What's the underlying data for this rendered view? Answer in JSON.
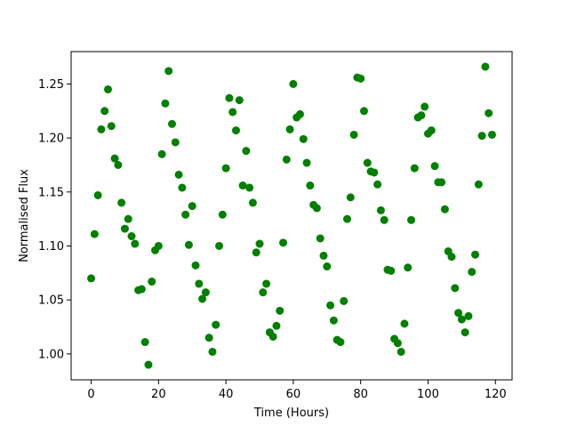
{
  "chart_data": {
    "type": "scatter",
    "title": "",
    "xlabel": "Time (Hours)",
    "ylabel": "Normalised Flux",
    "xlim": [
      -5.95,
      124.95
    ],
    "ylim": [
      0.976,
      1.28
    ],
    "xticks": [
      0,
      20,
      40,
      60,
      80,
      100,
      120
    ],
    "yticks": [
      1.0,
      1.05,
      1.1,
      1.15,
      1.2,
      1.25
    ],
    "xtick_labels": [
      "0",
      "20",
      "40",
      "60",
      "80",
      "100",
      "120"
    ],
    "ytick_labels": [
      "1.00",
      "1.05",
      "1.10",
      "1.15",
      "1.20",
      "1.25"
    ],
    "grid": false,
    "marker_color": "#008000",
    "series": [
      {
        "x": [
          0,
          1,
          2,
          3,
          4,
          5,
          6,
          7,
          8,
          9,
          10,
          11,
          12,
          13,
          14,
          15,
          16,
          17,
          18,
          19,
          20,
          21,
          22,
          23,
          24,
          25,
          26,
          27,
          28,
          29,
          30,
          31,
          32,
          33,
          34,
          35,
          36,
          37,
          38,
          39,
          40,
          41,
          42,
          43,
          44,
          45,
          46,
          47,
          48,
          49,
          50,
          51,
          52,
          53,
          54,
          55,
          56,
          57,
          58,
          59,
          60,
          61,
          62,
          63,
          64,
          65,
          66,
          67,
          68,
          69,
          70,
          71,
          72,
          73,
          74,
          75,
          76,
          77,
          78,
          79,
          80,
          81,
          82,
          83,
          84,
          85,
          86,
          87,
          88,
          89,
          90,
          91,
          92,
          93,
          94,
          95,
          96,
          97,
          98,
          99,
          100,
          101,
          102,
          103,
          104,
          105,
          106,
          107,
          108,
          109,
          110,
          111,
          112,
          113,
          114,
          115,
          116,
          117,
          118,
          119
        ],
        "y": [
          1.07,
          1.111,
          1.147,
          1.208,
          1.225,
          1.245,
          1.211,
          1.181,
          1.175,
          1.14,
          1.116,
          1.125,
          1.109,
          1.102,
          1.059,
          1.06,
          1.011,
          0.99,
          1.067,
          1.096,
          1.1,
          1.185,
          1.232,
          1.262,
          1.213,
          1.196,
          1.166,
          1.154,
          1.129,
          1.101,
          1.137,
          1.082,
          1.065,
          1.051,
          1.057,
          1.015,
          1.002,
          1.027,
          1.1,
          1.129,
          1.172,
          1.237,
          1.224,
          1.207,
          1.235,
          1.156,
          1.188,
          1.154,
          1.14,
          1.094,
          1.102,
          1.057,
          1.065,
          1.02,
          1.016,
          1.026,
          1.04,
          1.103,
          1.18,
          1.208,
          1.25,
          1.219,
          1.222,
          1.199,
          1.177,
          1.156,
          1.138,
          1.135,
          1.107,
          1.091,
          1.081,
          1.045,
          1.031,
          1.013,
          1.011,
          1.049,
          1.125,
          1.145,
          1.203,
          1.256,
          1.255,
          1.225,
          1.177,
          1.169,
          1.168,
          1.157,
          1.133,
          1.124,
          1.078,
          1.077,
          1.014,
          1.01,
          1.002,
          1.028,
          1.08,
          1.124,
          1.172,
          1.219,
          1.221,
          1.229,
          1.204,
          1.207,
          1.174,
          1.159,
          1.159,
          1.134,
          1.095,
          1.09,
          1.061,
          1.038,
          1.032,
          1.02,
          1.035,
          1.076,
          1.092,
          1.157,
          1.202,
          1.266,
          1.223,
          1.203
        ]
      }
    ]
  }
}
